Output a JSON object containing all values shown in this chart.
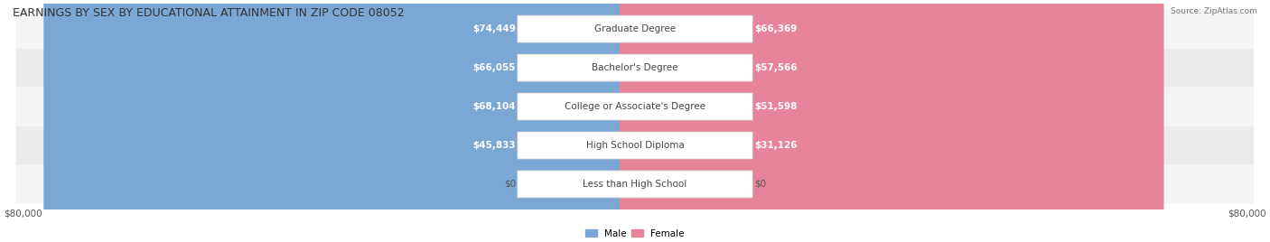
{
  "title": "EARNINGS BY SEX BY EDUCATIONAL ATTAINMENT IN ZIP CODE 08052",
  "source": "Source: ZipAtlas.com",
  "categories": [
    "Less than High School",
    "High School Diploma",
    "College or Associate's Degree",
    "Bachelor's Degree",
    "Graduate Degree"
  ],
  "male_values": [
    0,
    45833,
    68104,
    66055,
    74449
  ],
  "female_values": [
    0,
    31126,
    51598,
    57566,
    66369
  ],
  "male_labels": [
    "$0",
    "$45,833",
    "$68,104",
    "$66,055",
    "$74,449"
  ],
  "female_labels": [
    "$0",
    "$31,126",
    "$51,598",
    "$57,566",
    "$66,369"
  ],
  "male_color": "#7ba7d4",
  "female_color": "#e8849a",
  "male_color_dark": "#6090c0",
  "female_color_dark": "#d4607a",
  "bar_bg_color": "#e8e8e8",
  "row_bg_color_1": "#f5f5f5",
  "row_bg_color_2": "#ebebeb",
  "max_value": 80000,
  "axis_label": "$80,000",
  "title_fontsize": 9,
  "label_fontsize": 7.5,
  "tick_fontsize": 7.5,
  "background_color": "#ffffff"
}
